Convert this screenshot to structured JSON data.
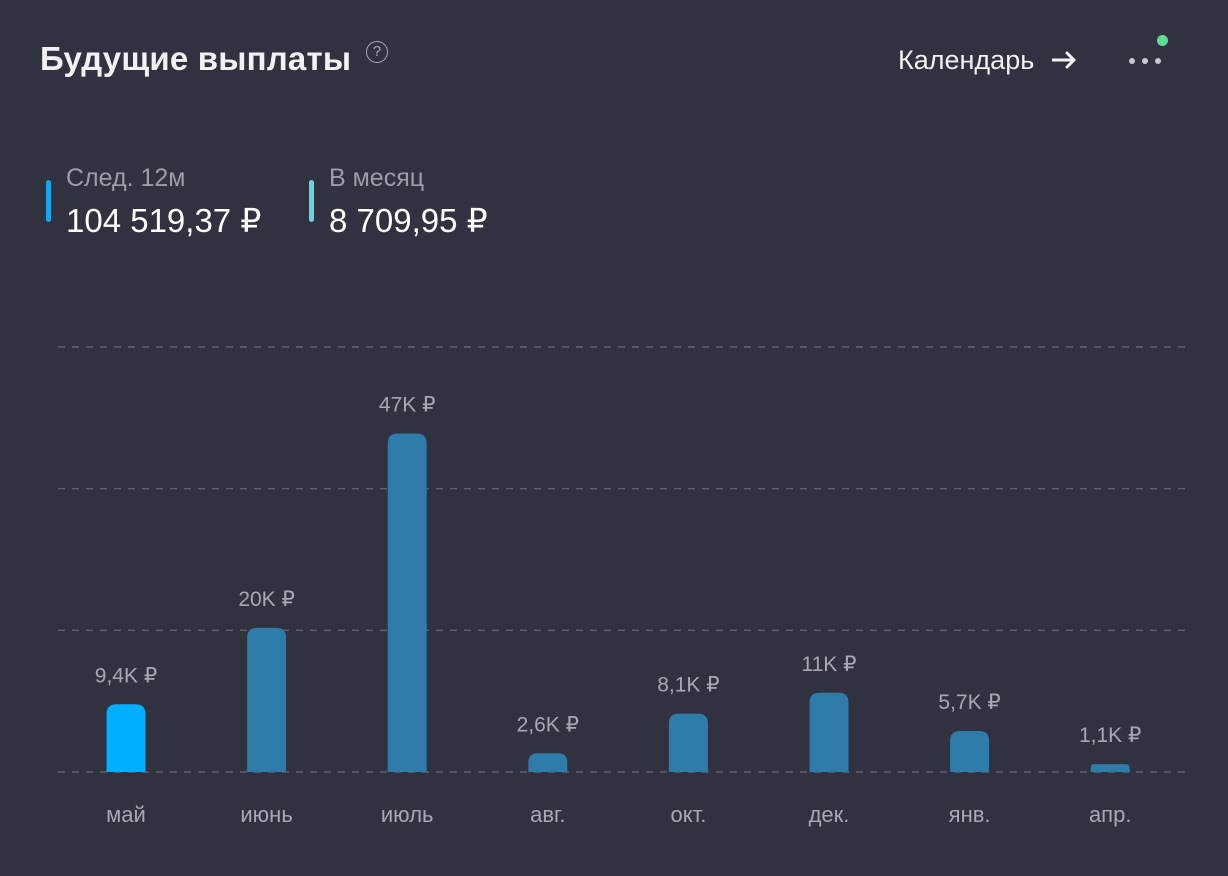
{
  "header": {
    "title": "Будущие выплаты",
    "help_symbol": "?",
    "calendar_label": "Календарь",
    "icons": {
      "help": "question-circle-icon",
      "arrow": "arrow-right-icon",
      "more": "more-dots-icon"
    }
  },
  "summary": {
    "next_12m": {
      "label": "След. 12м",
      "value": "104 519,37 ₽",
      "color": "#11a7ee"
    },
    "per_month": {
      "label": "В месяц",
      "value": "8 709,95 ₽",
      "color": "#66d4e4"
    }
  },
  "colors": {
    "background": "#31323f",
    "bar_default": "#2f7ba9",
    "bar_highlight": "#00afff",
    "grid": "#5f6170",
    "label": "#a6a8b4",
    "notification": "#5fdb94"
  },
  "chart_data": {
    "type": "bar",
    "categories": [
      "май",
      "июнь",
      "июль",
      "авг.",
      "окт.",
      "дек.",
      "янв.",
      "апр."
    ],
    "values": [
      9400,
      20000,
      47000,
      2600,
      8100,
      11000,
      5700,
      1100
    ],
    "data_labels": [
      "9,4K ₽",
      "20K ₽",
      "47K ₽",
      "2,6K ₽",
      "8,1K ₽",
      "11K ₽",
      "5,7K ₽",
      "1,1K ₽"
    ],
    "highlighted_index": 0,
    "ylim": [
      0,
      59000
    ],
    "grid": true,
    "title": "",
    "xlabel": "",
    "ylabel": ""
  }
}
